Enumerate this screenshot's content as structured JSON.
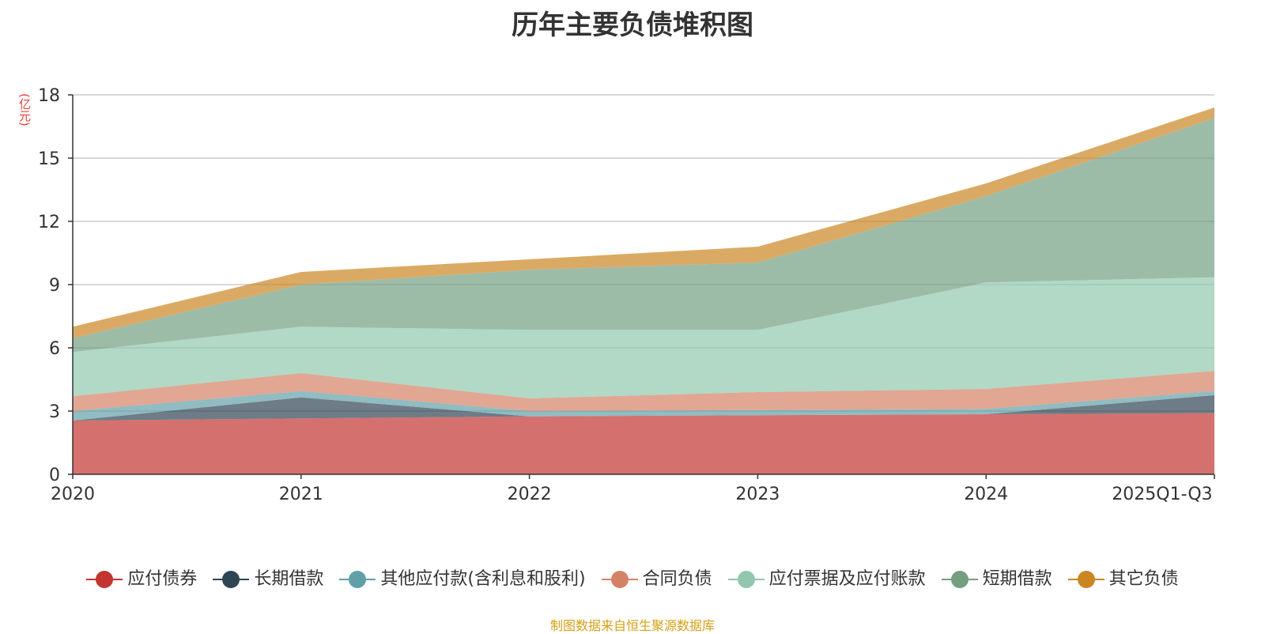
{
  "chart_data": {
    "type": "area",
    "stacked": true,
    "title": "历年主要负债堆积图",
    "ylabel": "(亿元)",
    "xlabel": "",
    "categories": [
      "2020",
      "2021",
      "2022",
      "2023",
      "2024",
      "2025Q1-Q3"
    ],
    "ylim": [
      0,
      18
    ],
    "yticks": [
      0,
      3,
      6,
      9,
      12,
      15,
      18
    ],
    "grid": true,
    "legend_position": "bottom",
    "series": [
      {
        "name": "应付债券",
        "color": "#c23531",
        "values": [
          2.55,
          2.65,
          2.75,
          2.8,
          2.85,
          2.9
        ]
      },
      {
        "name": "长期借款",
        "color": "#2f4554",
        "values": [
          0.0,
          1.0,
          0.0,
          0.0,
          0.0,
          0.85
        ]
      },
      {
        "name": "其他应付款(含利息和股利)",
        "color": "#61a0a8",
        "values": [
          0.45,
          0.3,
          0.25,
          0.25,
          0.25,
          0.2
        ]
      },
      {
        "name": "合同负债",
        "color": "#d48265",
        "values": [
          0.7,
          0.85,
          0.6,
          0.85,
          0.95,
          0.95
        ]
      },
      {
        "name": "应付票据及应付账款",
        "color": "#91c7ae",
        "values": [
          2.1,
          2.2,
          3.25,
          2.95,
          5.05,
          4.45
        ]
      },
      {
        "name": "短期借款",
        "color": "#749f83",
        "values": [
          0.65,
          2.0,
          2.85,
          3.2,
          4.1,
          7.55
        ]
      },
      {
        "name": "其它负债",
        "color": "#ca8622",
        "values": [
          0.55,
          0.6,
          0.5,
          0.75,
          0.6,
          0.5
        ]
      }
    ]
  },
  "source_note": "制图数据来自恒生聚源数据库"
}
